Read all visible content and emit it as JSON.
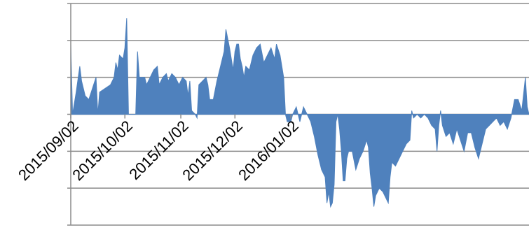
{
  "chart_data": {
    "type": "area",
    "title": "",
    "xlabel": "",
    "ylabel": "",
    "grid": true,
    "legend": "none",
    "color": "#4f81bd",
    "ylim": [
      -3,
      3
    ],
    "yticks": [
      -3,
      -2,
      -1,
      0,
      1,
      2,
      3
    ],
    "x_tick_labels": [
      "2015/09/02",
      "2015/10/02",
      "2015/11/02",
      "2015/12/02",
      "2016/01/02"
    ],
    "x_tick_dates": [
      "2015-09-02",
      "2015-10-02",
      "2015-11-02",
      "2015-12-02",
      "2016-01-02"
    ],
    "x_range": [
      "2015-09-02",
      "2016-05-13"
    ],
    "series": [
      {
        "values": [
          [
            "2015-09-02",
            1.9
          ],
          [
            "2015-09-03",
            0.0
          ],
          [
            "2015-09-05",
            0.6
          ],
          [
            "2015-09-07",
            1.3
          ],
          [
            "2015-09-08",
            0.9
          ],
          [
            "2015-09-10",
            0.5
          ],
          [
            "2015-09-12",
            0.4
          ],
          [
            "2015-09-14",
            0.7
          ],
          [
            "2015-09-16",
            1.0
          ],
          [
            "2015-09-17",
            0.0
          ],
          [
            "2015-09-18",
            0.6
          ],
          [
            "2015-09-21",
            0.7
          ],
          [
            "2015-09-24",
            0.8
          ],
          [
            "2015-09-26",
            1.0
          ],
          [
            "2015-09-27",
            1.4
          ],
          [
            "2015-09-28",
            1.2
          ],
          [
            "2015-09-29",
            1.6
          ],
          [
            "2015-10-01",
            1.5
          ],
          [
            "2015-10-02",
            1.8
          ],
          [
            "2015-10-03",
            2.6
          ],
          [
            "2015-10-04",
            0.0
          ],
          [
            "2015-10-08",
            0.0
          ],
          [
            "2015-10-09",
            1.7
          ],
          [
            "2015-10-10",
            1.0
          ],
          [
            "2015-10-13",
            1.0
          ],
          [
            "2015-10-14",
            0.8
          ],
          [
            "2015-10-16",
            1.0
          ],
          [
            "2015-10-18",
            1.2
          ],
          [
            "2015-10-20",
            1.3
          ],
          [
            "2015-10-21",
            0.8
          ],
          [
            "2015-10-23",
            1.0
          ],
          [
            "2015-10-25",
            1.1
          ],
          [
            "2015-10-26",
            0.9
          ],
          [
            "2015-10-28",
            1.1
          ],
          [
            "2015-10-30",
            1.0
          ],
          [
            "2015-11-01",
            0.8
          ],
          [
            "2015-11-03",
            1.0
          ],
          [
            "2015-11-05",
            0.9
          ],
          [
            "2015-11-06",
            0.5
          ],
          [
            "2015-11-07",
            0.9
          ],
          [
            "2015-11-08",
            0.1
          ],
          [
            "2015-11-10",
            0.0
          ],
          [
            "2015-11-11",
            -0.1
          ],
          [
            "2015-11-12",
            0.8
          ],
          [
            "2015-11-14",
            0.9
          ],
          [
            "2015-11-16",
            1.0
          ],
          [
            "2015-11-17",
            0.8
          ],
          [
            "2015-11-18",
            0.4
          ],
          [
            "2015-11-20",
            0.4
          ],
          [
            "2015-11-22",
            0.9
          ],
          [
            "2015-11-24",
            1.3
          ],
          [
            "2015-11-26",
            1.7
          ],
          [
            "2015-11-27",
            2.3
          ],
          [
            "2015-11-29",
            1.8
          ],
          [
            "2015-12-01",
            1.2
          ],
          [
            "2015-12-02",
            1.7
          ],
          [
            "2015-12-03",
            1.9
          ],
          [
            "2015-12-04",
            1.9
          ],
          [
            "2015-12-05",
            1.5
          ],
          [
            "2015-12-06",
            1.3
          ],
          [
            "2015-12-07",
            1.0
          ],
          [
            "2015-12-08",
            1.3
          ],
          [
            "2015-12-10",
            1.2
          ],
          [
            "2015-12-12",
            1.6
          ],
          [
            "2015-12-14",
            1.8
          ],
          [
            "2015-12-16",
            1.9
          ],
          [
            "2015-12-18",
            1.4
          ],
          [
            "2015-12-20",
            1.6
          ],
          [
            "2015-12-22",
            1.8
          ],
          [
            "2015-12-24",
            1.5
          ],
          [
            "2015-12-25",
            1.9
          ],
          [
            "2015-12-27",
            1.6
          ],
          [
            "2015-12-29",
            1.0
          ],
          [
            "2015-12-30",
            0.0
          ],
          [
            "2015-12-31",
            -0.2
          ],
          [
            "2016-01-02",
            -0.2
          ],
          [
            "2016-01-03",
            0.0
          ],
          [
            "2016-01-05",
            0.2
          ],
          [
            "2016-01-07",
            -0.2
          ],
          [
            "2016-01-09",
            0.2
          ],
          [
            "2016-01-11",
            0.0
          ],
          [
            "2016-01-13",
            -0.2
          ],
          [
            "2016-01-15",
            -0.6
          ],
          [
            "2016-01-17",
            -1.1
          ],
          [
            "2016-01-19",
            -1.5
          ],
          [
            "2016-01-21",
            -1.7
          ],
          [
            "2016-01-22",
            -2.4
          ],
          [
            "2016-01-23",
            -2.1
          ],
          [
            "2016-01-24",
            -2.5
          ],
          [
            "2016-01-25",
            -2.4
          ],
          [
            "2016-01-26",
            -1.9
          ],
          [
            "2016-01-27",
            -0.2
          ],
          [
            "2016-01-28",
            0.0
          ],
          [
            "2016-01-29",
            -0.4
          ],
          [
            "2016-01-30",
            -1.0
          ],
          [
            "2016-01-31",
            -1.8
          ],
          [
            "2016-02-01",
            -1.8
          ],
          [
            "2016-02-02",
            -1.2
          ],
          [
            "2016-02-03",
            -1.0
          ],
          [
            "2016-02-05",
            -1.0
          ],
          [
            "2016-02-07",
            -1.5
          ],
          [
            "2016-02-09",
            -1.2
          ],
          [
            "2016-02-11",
            -1.0
          ],
          [
            "2016-02-13",
            -0.7
          ],
          [
            "2016-02-14",
            -0.9
          ],
          [
            "2016-02-15",
            -1.6
          ],
          [
            "2016-02-16",
            -2.0
          ],
          [
            "2016-02-17",
            -2.5
          ],
          [
            "2016-02-18",
            -2.2
          ],
          [
            "2016-02-20",
            -2.0
          ],
          [
            "2016-02-22",
            -2.1
          ],
          [
            "2016-02-24",
            -2.3
          ],
          [
            "2016-02-25",
            -2.4
          ],
          [
            "2016-02-26",
            -1.7
          ],
          [
            "2016-02-27",
            -1.3
          ],
          [
            "2016-02-29",
            -1.4
          ],
          [
            "2016-03-02",
            -1.2
          ],
          [
            "2016-03-04",
            -1.0
          ],
          [
            "2016-03-06",
            -0.8
          ],
          [
            "2016-03-08",
            -0.7
          ],
          [
            "2016-03-09",
            0.1
          ],
          [
            "2016-03-10",
            -0.1
          ],
          [
            "2016-03-12",
            0.0
          ],
          [
            "2016-03-14",
            -0.1
          ],
          [
            "2016-03-16",
            0.0
          ],
          [
            "2016-03-18",
            -0.1
          ],
          [
            "2016-03-20",
            -0.3
          ],
          [
            "2016-03-22",
            -0.4
          ],
          [
            "2016-03-23",
            -1.0
          ],
          [
            "2016-03-24",
            -0.3
          ],
          [
            "2016-03-25",
            0.1
          ],
          [
            "2016-03-26",
            -0.3
          ],
          [
            "2016-03-28",
            -0.6
          ],
          [
            "2016-03-30",
            -0.5
          ],
          [
            "2016-04-01",
            -0.8
          ],
          [
            "2016-04-03",
            -0.4
          ],
          [
            "2016-04-05",
            -0.7
          ],
          [
            "2016-04-07",
            -1.0
          ],
          [
            "2016-04-09",
            -0.5
          ],
          [
            "2016-04-11",
            -0.5
          ],
          [
            "2016-04-13",
            -0.9
          ],
          [
            "2016-04-15",
            -1.2
          ],
          [
            "2016-04-17",
            -0.8
          ],
          [
            "2016-04-19",
            -0.4
          ],
          [
            "2016-04-21",
            -0.3
          ],
          [
            "2016-04-23",
            -0.2
          ],
          [
            "2016-04-25",
            -0.1
          ],
          [
            "2016-04-27",
            -0.3
          ],
          [
            "2016-04-29",
            -0.2
          ],
          [
            "2016-05-01",
            -0.4
          ],
          [
            "2016-05-03",
            -0.1
          ],
          [
            "2016-05-05",
            0.4
          ],
          [
            "2016-05-07",
            0.4
          ],
          [
            "2016-05-09",
            0.1
          ],
          [
            "2016-05-11",
            1.0
          ],
          [
            "2016-05-12",
            0.2
          ],
          [
            "2016-05-13",
            0.0
          ]
        ]
      }
    ]
  }
}
